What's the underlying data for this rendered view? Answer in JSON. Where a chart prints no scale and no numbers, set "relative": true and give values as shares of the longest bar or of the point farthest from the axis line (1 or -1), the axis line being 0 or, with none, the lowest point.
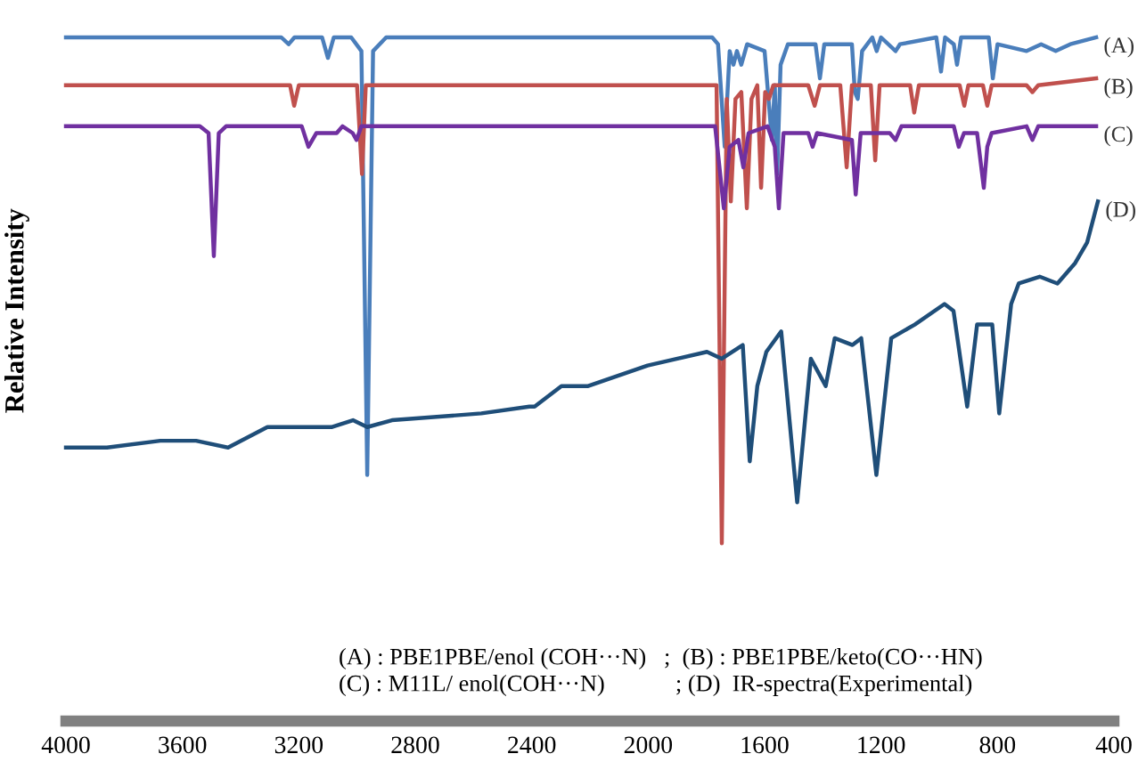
{
  "chart_data": {
    "type": "line",
    "relative": true,
    "ylabel": "Relative Intensity",
    "xlim": [
      4000,
      400
    ],
    "xticks": [
      4000,
      3600,
      3200,
      2800,
      2400,
      2000,
      1600,
      1200,
      800,
      400
    ],
    "grid": false,
    "legend": false,
    "marker": "none",
    "line_style": "solid",
    "annotations": [
      "(A) : PBE1PBE/enol (COH···N)   ;  (B) : PBE1PBE/keto(CO···HN)",
      "(C) : M11L/ enol(COH···N)            ; (D)  IR-spectra(Experimental)"
    ],
    "series": [
      {
        "name": "(A)",
        "color": "#4a7ebb",
        "x": [
          4000,
          3260,
          3235,
          3215,
          3120,
          3100,
          3080,
          3020,
          2985,
          2965,
          2945,
          2900,
          1780,
          1760,
          1737,
          1720,
          1707,
          1695,
          1680,
          1660,
          1600,
          1575,
          1565,
          1557,
          1545,
          1520,
          1425,
          1410,
          1395,
          1300,
          1290,
          1280,
          1265,
          1230,
          1215,
          1200,
          1150,
          1135,
          1010,
          994,
          980,
          950,
          939,
          925,
          830,
          816,
          800,
          700,
          650,
          600,
          550,
          461
        ],
        "values": [
          1,
          1,
          0.99,
          1,
          1,
          0.97,
          1,
          1,
          0.98,
          0.36,
          0.98,
          1,
          1,
          0.99,
          0.84,
          0.98,
          0.96,
          0.98,
          0.96,
          0.99,
          0.98,
          0.85,
          0.93,
          0.8,
          0.96,
          0.99,
          0.99,
          0.94,
          0.99,
          0.99,
          0.92,
          0.91,
          0.98,
          1,
          0.98,
          1,
          0.98,
          0.99,
          1,
          0.95,
          1,
          0.99,
          0.96,
          1,
          1,
          0.94,
          0.99,
          0.98,
          0.99,
          0.98,
          0.99,
          1
        ]
      },
      {
        "name": "(B)",
        "color": "#c0504d",
        "x": [
          4000,
          3230,
          3216,
          3200,
          3140,
          3125,
          3060,
          3045,
          3000,
          2983,
          2970,
          1790,
          1765,
          1747,
          1730,
          1716,
          1700,
          1680,
          1661,
          1645,
          1625,
          1612,
          1598,
          1585,
          1570,
          1450,
          1428,
          1410,
          1340,
          1318,
          1300,
          1235,
          1220,
          1205,
          1100,
          1086,
          1070,
          930,
          914,
          900,
          850,
          835,
          820,
          700,
          680,
          660,
          461
        ],
        "values": [
          0.93,
          0.93,
          0.9,
          0.93,
          0.93,
          0.93,
          0.93,
          0.93,
          0.93,
          0.8,
          0.93,
          0.93,
          0.93,
          0.26,
          0.91,
          0.76,
          0.91,
          0.92,
          0.75,
          0.91,
          0.93,
          0.78,
          0.92,
          0.91,
          0.93,
          0.93,
          0.9,
          0.93,
          0.93,
          0.81,
          0.93,
          0.93,
          0.82,
          0.93,
          0.93,
          0.89,
          0.93,
          0.93,
          0.9,
          0.93,
          0.93,
          0.9,
          0.93,
          0.93,
          0.92,
          0.93,
          0.94
        ]
      },
      {
        "name": "(C)",
        "color": "#7030a0",
        "x": [
          4000,
          3540,
          3510,
          3492,
          3475,
          3450,
          3190,
          3167,
          3140,
          3070,
          3050,
          3015,
          3002,
          2985,
          1770,
          1740,
          1720,
          1690,
          1673,
          1655,
          1590,
          1565,
          1551,
          1535,
          1450,
          1435,
          1420,
          1300,
          1287,
          1270,
          1170,
          1150,
          1130,
          950,
          933,
          915,
          870,
          847,
          835,
          820,
          700,
          680,
          660,
          461
        ],
        "values": [
          0.87,
          0.87,
          0.86,
          0.68,
          0.86,
          0.87,
          0.87,
          0.84,
          0.86,
          0.86,
          0.87,
          0.86,
          0.85,
          0.87,
          0.87,
          0.75,
          0.84,
          0.85,
          0.81,
          0.86,
          0.87,
          0.84,
          0.75,
          0.86,
          0.86,
          0.84,
          0.86,
          0.85,
          0.77,
          0.86,
          0.86,
          0.85,
          0.87,
          0.87,
          0.84,
          0.86,
          0.86,
          0.78,
          0.84,
          0.86,
          0.87,
          0.85,
          0.87,
          0.87
        ]
      },
      {
        "name": "(D)",
        "color": "#1f4e79",
        "x": [
          4000,
          3859,
          3676,
          3553,
          3443,
          3308,
          3124,
          3088,
          3014,
          2965,
          2880,
          2573,
          2408,
          2390,
          2298,
          2206,
          2002,
          1798,
          1747,
          1675,
          1651,
          1625,
          1594,
          1543,
          1488,
          1441,
          1390,
          1359,
          1298,
          1268,
          1216,
          1165,
          1084,
          982,
          951,
          904,
          870,
          818,
          794,
          753,
          727,
          655,
          594,
          533,
          492,
          455
        ],
        "values": [
          0.4,
          0.4,
          0.41,
          0.41,
          0.4,
          0.43,
          0.43,
          0.43,
          0.44,
          0.43,
          0.44,
          0.45,
          0.46,
          0.46,
          0.49,
          0.49,
          0.52,
          0.54,
          0.53,
          0.55,
          0.38,
          0.49,
          0.54,
          0.57,
          0.32,
          0.53,
          0.49,
          0.56,
          0.55,
          0.56,
          0.36,
          0.56,
          0.58,
          0.61,
          0.6,
          0.46,
          0.58,
          0.58,
          0.45,
          0.61,
          0.64,
          0.65,
          0.64,
          0.67,
          0.7,
          0.76
        ]
      }
    ]
  }
}
